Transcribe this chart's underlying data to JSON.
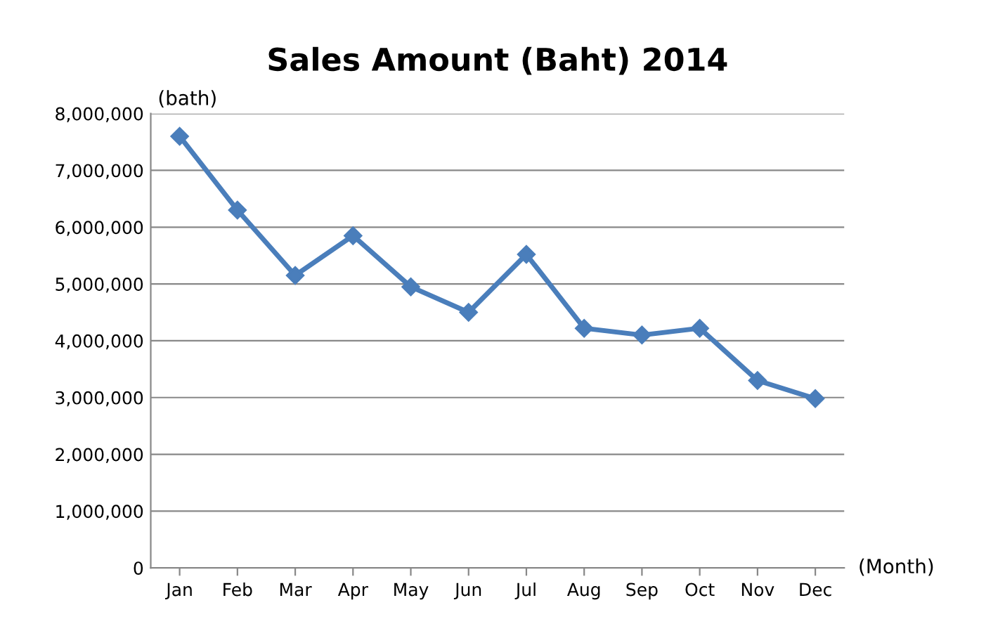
{
  "chart_data": {
    "type": "line",
    "title": "Sales Amount (Baht) 2014",
    "ylabel": "(bath)",
    "xlabel": "(Month)",
    "categories": [
      "Jan",
      "Feb",
      "Mar",
      "Apr",
      "May",
      "Jun",
      "Jul",
      "Aug",
      "Sep",
      "Oct",
      "Nov",
      "Dec"
    ],
    "series": [
      {
        "color": "#4a7ebb",
        "values": [
          7600000,
          6300000,
          5150000,
          5850000,
          4950000,
          4500000,
          5520000,
          4220000,
          4100000,
          4220000,
          3300000,
          2980000
        ]
      }
    ],
    "ylim": [
      0,
      8000000
    ],
    "yticks": [
      {
        "value": 0,
        "label": "0"
      },
      {
        "value": 1000000,
        "label": "1,000,000"
      },
      {
        "value": 2000000,
        "label": "2,000,000"
      },
      {
        "value": 3000000,
        "label": "3,000,000"
      },
      {
        "value": 4000000,
        "label": "4,000,000"
      },
      {
        "value": 5000000,
        "label": "5,000,000"
      },
      {
        "value": 6000000,
        "label": "6,000,000"
      },
      {
        "value": 7000000,
        "label": "7,000,000"
      },
      {
        "value": 8000000,
        "label": "8,000,000"
      }
    ],
    "grid": "y",
    "marker": "diamond",
    "line_style": "solid",
    "legend": false
  }
}
